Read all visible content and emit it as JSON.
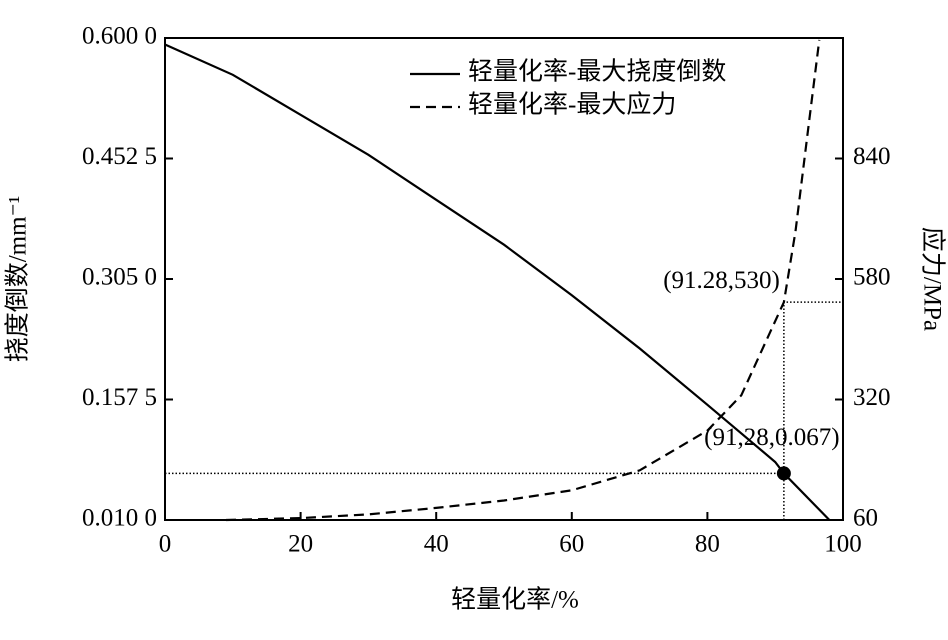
{
  "chart_data": {
    "type": "line",
    "xlabel": "轻量化率/%",
    "ylabel": "挠度倒数/mm⁻¹",
    "y2label": "应力/MPa",
    "xlim": [
      0,
      100
    ],
    "xticks": [
      0,
      20,
      40,
      60,
      80,
      100
    ],
    "ylim": [
      0.01,
      0.6
    ],
    "yticks": [
      {
        "value": 0.01,
        "label": "0.010 0"
      },
      {
        "value": 0.1575,
        "label": "0.157 5"
      },
      {
        "value": 0.305,
        "label": "0.305 0"
      },
      {
        "value": 0.4525,
        "label": "0.452 5"
      },
      {
        "value": 0.6,
        "label": "0.600 0"
      }
    ],
    "y2lim": [
      60,
      1100
    ],
    "y2ticks": [
      60,
      320,
      580,
      840
    ],
    "legend": "upper right",
    "series": [
      {
        "name": "轻量化率-最大挠度倒数",
        "color": "#000000",
        "dash": "solid",
        "x": [
          0,
          10,
          20,
          30,
          40,
          50,
          60,
          70,
          80,
          90,
          91.28,
          98
        ],
        "values": [
          0.592,
          0.555,
          0.506,
          0.457,
          0.402,
          0.347,
          0.285,
          0.22,
          0.151,
          0.081,
          0.067,
          0.01
        ]
      },
      {
        "name": "轻量化率-最大应力",
        "color": "#000000",
        "dash": "dashed",
        "axis": "y2",
        "x": [
          9,
          20,
          30,
          40,
          50,
          60,
          70,
          80,
          85,
          88,
          91.28,
          93,
          95,
          96.5
        ],
        "values": [
          60,
          64,
          72,
          86,
          102,
          124,
          167,
          253,
          329,
          425,
          530,
          683,
          920,
          1096
        ]
      }
    ],
    "annotations": [
      {
        "x": 91.28,
        "y": 0.067,
        "label": "(91,28,0.067)",
        "marker": "circle"
      },
      {
        "x": 91.28,
        "y": 530,
        "axis": "y2",
        "label": "(91.28,530)",
        "marker": "none"
      }
    ]
  }
}
